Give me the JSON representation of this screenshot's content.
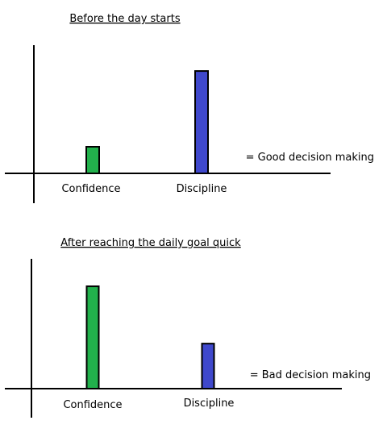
{
  "chart_data": [
    {
      "type": "bar",
      "title": "Before the day starts",
      "categories": [
        "Confidence",
        "Discipline"
      ],
      "values": [
        2.6,
        10
      ],
      "colors": [
        "#22b14c",
        "#3f48cc"
      ],
      "annotation": "= Good decision making",
      "ylim": [
        0,
        13
      ],
      "xlabel": "",
      "ylabel": "",
      "grid": false
    },
    {
      "type": "bar",
      "title": "After reaching the daily goal quick",
      "categories": [
        "Confidence",
        "Discipline"
      ],
      "values": [
        10,
        4.4
      ],
      "colors": [
        "#22b14c",
        "#3f48cc"
      ],
      "annotation": "= Bad decision making",
      "ylim": [
        0,
        13
      ],
      "xlabel": "",
      "ylabel": "",
      "grid": false
    }
  ]
}
